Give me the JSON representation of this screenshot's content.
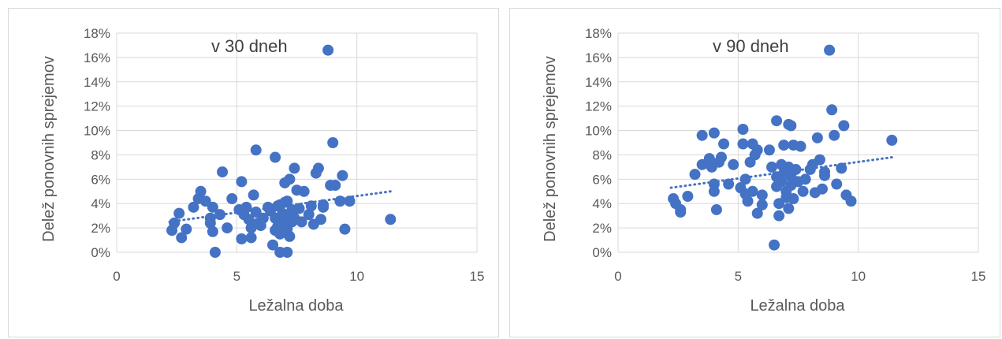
{
  "chart_data": [
    {
      "type": "scatter",
      "title": "v 30 dneh",
      "xlabel": "Ležalna doba",
      "ylabel": "Delež ponovnih sprejemov",
      "xlim": [
        0,
        15
      ],
      "ylim": [
        0,
        0.18
      ],
      "x_ticks": [
        "0",
        "5",
        "10",
        "15"
      ],
      "y_ticks": [
        "0%",
        "2%",
        "4%",
        "6%",
        "8%",
        "10%",
        "12%",
        "14%",
        "16%",
        "18%"
      ],
      "grid": true,
      "marker_color": "#4472C4",
      "trendline": {
        "style": "dotted",
        "x": [
          2.2,
          11.4
        ],
        "y": [
          0.025,
          0.05
        ]
      },
      "points": [
        [
          2.3,
          0.018
        ],
        [
          2.4,
          0.024
        ],
        [
          2.7,
          0.012
        ],
        [
          2.6,
          0.032
        ],
        [
          2.9,
          0.019
        ],
        [
          3.2,
          0.037
        ],
        [
          3.5,
          0.05
        ],
        [
          3.4,
          0.044
        ],
        [
          3.7,
          0.042
        ],
        [
          3.9,
          0.028
        ],
        [
          4.0,
          0.037
        ],
        [
          3.9,
          0.024
        ],
        [
          4.0,
          0.017
        ],
        [
          4.1,
          0.0
        ],
        [
          4.3,
          0.031
        ],
        [
          4.4,
          0.066
        ],
        [
          4.6,
          0.02
        ],
        [
          4.8,
          0.044
        ],
        [
          5.1,
          0.035
        ],
        [
          5.2,
          0.058
        ],
        [
          5.3,
          0.031
        ],
        [
          5.2,
          0.011
        ],
        [
          5.4,
          0.037
        ],
        [
          5.5,
          0.027
        ],
        [
          5.6,
          0.02
        ],
        [
          5.6,
          0.012
        ],
        [
          5.7,
          0.047
        ],
        [
          5.8,
          0.084
        ],
        [
          5.8,
          0.033
        ],
        [
          5.9,
          0.024
        ],
        [
          6.1,
          0.028
        ],
        [
          6.0,
          0.022
        ],
        [
          6.3,
          0.037
        ],
        [
          6.4,
          0.034
        ],
        [
          6.5,
          0.006
        ],
        [
          6.6,
          0.078
        ],
        [
          6.6,
          0.028
        ],
        [
          6.6,
          0.018
        ],
        [
          6.7,
          0.038
        ],
        [
          6.7,
          0.021
        ],
        [
          6.8,
          0.039
        ],
        [
          6.8,
          0.0
        ],
        [
          6.8,
          0.015
        ],
        [
          6.9,
          0.032
        ],
        [
          6.9,
          0.024
        ],
        [
          7.0,
          0.041
        ],
        [
          7.0,
          0.057
        ],
        [
          7.0,
          0.03
        ],
        [
          7.1,
          0.019
        ],
        [
          7.1,
          0.042
        ],
        [
          7.1,
          0.0
        ],
        [
          7.2,
          0.06
        ],
        [
          7.2,
          0.031
        ],
        [
          7.2,
          0.013
        ],
        [
          7.3,
          0.025
        ],
        [
          7.3,
          0.035
        ],
        [
          7.4,
          0.069
        ],
        [
          7.4,
          0.028
        ],
        [
          7.5,
          0.051
        ],
        [
          7.6,
          0.036
        ],
        [
          7.7,
          0.025
        ],
        [
          7.8,
          0.05
        ],
        [
          8.0,
          0.031
        ],
        [
          8.1,
          0.038
        ],
        [
          8.2,
          0.023
        ],
        [
          8.3,
          0.065
        ],
        [
          8.4,
          0.069
        ],
        [
          8.5,
          0.027
        ],
        [
          8.6,
          0.039
        ],
        [
          8.6,
          0.037
        ],
        [
          8.8,
          0.166
        ],
        [
          8.9,
          0.055
        ],
        [
          9.0,
          0.09
        ],
        [
          9.1,
          0.055
        ],
        [
          9.3,
          0.042
        ],
        [
          9.4,
          0.063
        ],
        [
          9.5,
          0.019
        ],
        [
          9.7,
          0.042
        ],
        [
          11.4,
          0.027
        ]
      ]
    },
    {
      "type": "scatter",
      "title": "v 90 dneh",
      "xlabel": "Ležalna doba",
      "ylabel": "Delež ponovnih sprejemov",
      "xlim": [
        0,
        15
      ],
      "ylim": [
        0,
        0.18
      ],
      "x_ticks": [
        "0",
        "5",
        "10",
        "15"
      ],
      "y_ticks": [
        "0%",
        "2%",
        "4%",
        "6%",
        "8%",
        "10%",
        "12%",
        "14%",
        "16%",
        "18%"
      ],
      "grid": true,
      "marker_color": "#4472C4",
      "trendline": {
        "style": "dotted",
        "x": [
          2.2,
          11.4
        ],
        "y": [
          0.053,
          0.078
        ]
      },
      "points": [
        [
          2.3,
          0.044
        ],
        [
          2.4,
          0.04
        ],
        [
          2.6,
          0.033
        ],
        [
          2.6,
          0.035
        ],
        [
          2.9,
          0.046
        ],
        [
          3.2,
          0.064
        ],
        [
          3.5,
          0.096
        ],
        [
          3.5,
          0.072
        ],
        [
          3.8,
          0.077
        ],
        [
          3.9,
          0.07
        ],
        [
          4.0,
          0.098
        ],
        [
          4.0,
          0.056
        ],
        [
          4.0,
          0.05
        ],
        [
          4.1,
          0.035
        ],
        [
          4.2,
          0.074
        ],
        [
          4.3,
          0.078
        ],
        [
          4.4,
          0.089
        ],
        [
          4.6,
          0.056
        ],
        [
          4.8,
          0.072
        ],
        [
          5.1,
          0.053
        ],
        [
          5.2,
          0.101
        ],
        [
          5.2,
          0.089
        ],
        [
          5.3,
          0.048
        ],
        [
          5.3,
          0.06
        ],
        [
          5.4,
          0.042
        ],
        [
          5.5,
          0.074
        ],
        [
          5.6,
          0.089
        ],
        [
          5.6,
          0.05
        ],
        [
          5.7,
          0.08
        ],
        [
          5.8,
          0.084
        ],
        [
          5.8,
          0.032
        ],
        [
          6.0,
          0.047
        ],
        [
          6.0,
          0.039
        ],
        [
          6.3,
          0.084
        ],
        [
          6.4,
          0.07
        ],
        [
          6.5,
          0.006
        ],
        [
          6.6,
          0.108
        ],
        [
          6.6,
          0.062
        ],
        [
          6.6,
          0.054
        ],
        [
          6.7,
          0.04
        ],
        [
          6.7,
          0.03
        ],
        [
          6.8,
          0.072
        ],
        [
          6.8,
          0.058
        ],
        [
          6.9,
          0.088
        ],
        [
          6.9,
          0.065
        ],
        [
          7.0,
          0.05
        ],
        [
          7.0,
          0.045
        ],
        [
          7.1,
          0.105
        ],
        [
          7.1,
          0.07
        ],
        [
          7.1,
          0.036
        ],
        [
          7.2,
          0.104
        ],
        [
          7.2,
          0.062
        ],
        [
          7.2,
          0.055
        ],
        [
          7.3,
          0.088
        ],
        [
          7.3,
          0.044
        ],
        [
          7.4,
          0.068
        ],
        [
          7.5,
          0.058
        ],
        [
          7.6,
          0.087
        ],
        [
          7.7,
          0.05
        ],
        [
          7.8,
          0.06
        ],
        [
          8.0,
          0.068
        ],
        [
          8.1,
          0.072
        ],
        [
          8.2,
          0.049
        ],
        [
          8.3,
          0.094
        ],
        [
          8.4,
          0.076
        ],
        [
          8.5,
          0.052
        ],
        [
          8.6,
          0.066
        ],
        [
          8.6,
          0.063
        ],
        [
          8.8,
          0.166
        ],
        [
          8.9,
          0.117
        ],
        [
          9.0,
          0.096
        ],
        [
          9.1,
          0.056
        ],
        [
          9.3,
          0.069
        ],
        [
          9.4,
          0.104
        ],
        [
          9.5,
          0.047
        ],
        [
          9.7,
          0.042
        ],
        [
          11.4,
          0.092
        ]
      ]
    }
  ]
}
